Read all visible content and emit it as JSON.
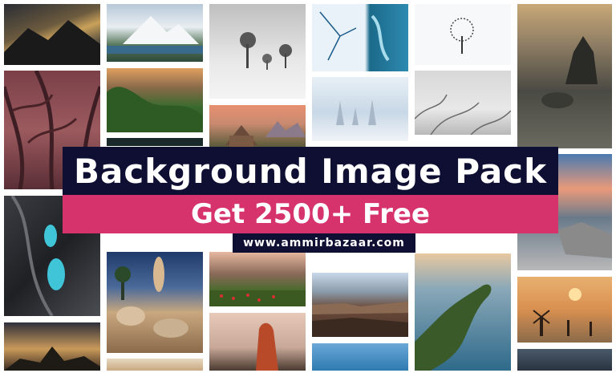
{
  "banner": {
    "title": "Background Image Pack",
    "subtitle": "Get 2500+ Free",
    "url": "www.ammirbazaar.com"
  },
  "colors": {
    "title_bg": "#0e0f33",
    "subtitle_bg": "#d6336c",
    "text": "#ffffff"
  }
}
